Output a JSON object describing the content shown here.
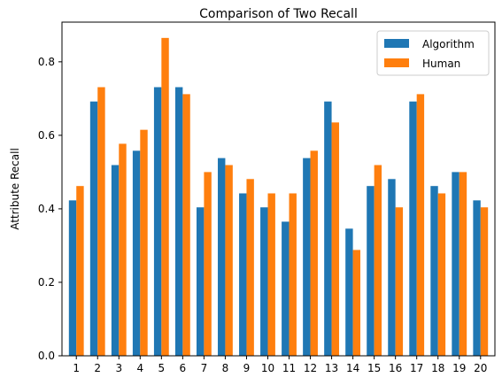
{
  "chart_data": {
    "type": "bar",
    "title": "Comparison of Two Recall",
    "xlabel": "",
    "ylabel": "Attribute Recall",
    "categories": [
      "1",
      "2",
      "3",
      "4",
      "5",
      "6",
      "7",
      "8",
      "9",
      "10",
      "11",
      "12",
      "13",
      "14",
      "15",
      "16",
      "17",
      "18",
      "19",
      "20"
    ],
    "series": [
      {
        "name": "Algorithm",
        "color": "#1f77b4",
        "values": [
          0.423,
          0.692,
          0.519,
          0.558,
          0.731,
          0.731,
          0.404,
          0.538,
          0.442,
          0.404,
          0.365,
          0.538,
          0.692,
          0.346,
          0.462,
          0.481,
          0.692,
          0.462,
          0.5,
          0.423
        ]
      },
      {
        "name": "Human",
        "color": "#ff7f0e",
        "values": [
          0.462,
          0.731,
          0.577,
          0.615,
          0.865,
          0.712,
          0.5,
          0.519,
          0.481,
          0.442,
          0.442,
          0.558,
          0.635,
          0.288,
          0.519,
          0.404,
          0.712,
          0.442,
          0.5,
          0.404
        ]
      }
    ],
    "ylim": [
      0,
      0.908
    ],
    "yticks": [
      "0.0",
      "0.2",
      "0.4",
      "0.6",
      "0.8"
    ],
    "legend_position": "top-right",
    "grid": false
  }
}
